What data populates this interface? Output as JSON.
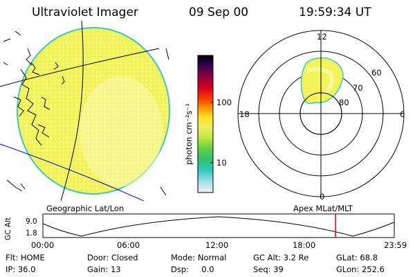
{
  "header": {
    "title": "Ultraviolet Imager",
    "date": "09 Sep 00",
    "time": "19:59:34 UT"
  },
  "colorbar": {
    "unit": "photon cm⁻²s⁻¹",
    "ticks": [
      "100",
      "10"
    ]
  },
  "polar": {
    "mlt_labels": [
      "12",
      "18",
      "6",
      "0"
    ],
    "mlat_labels": [
      "60",
      "70",
      "80"
    ]
  },
  "footer": {
    "left_label": "Geographic Lat/Lon",
    "right_label": "Apex  MLat/MLT",
    "axis_label": "GC Alt",
    "y_ticks": [
      "9.0",
      "1.8"
    ],
    "x_ticks": [
      "00:00",
      "06:00",
      "12:00",
      "18:00",
      "23:59"
    ],
    "current_time_fraction": 0.833
  },
  "info": [
    [
      "Flt: HOME",
      "Door: Closed",
      "Mode: Normal",
      "GC Alt: 3.2 Re",
      "GLat:  68.8"
    ],
    [
      "IP: 36.0",
      "Gain: 13",
      "Dsp:     0.0",
      "Seq: 39",
      "GLon: 252.6"
    ]
  ],
  "colors": {
    "disk_fill": "#f3f35a",
    "disk_edge": "#38c8c0",
    "marker": "#e00000",
    "line": "#000000"
  }
}
